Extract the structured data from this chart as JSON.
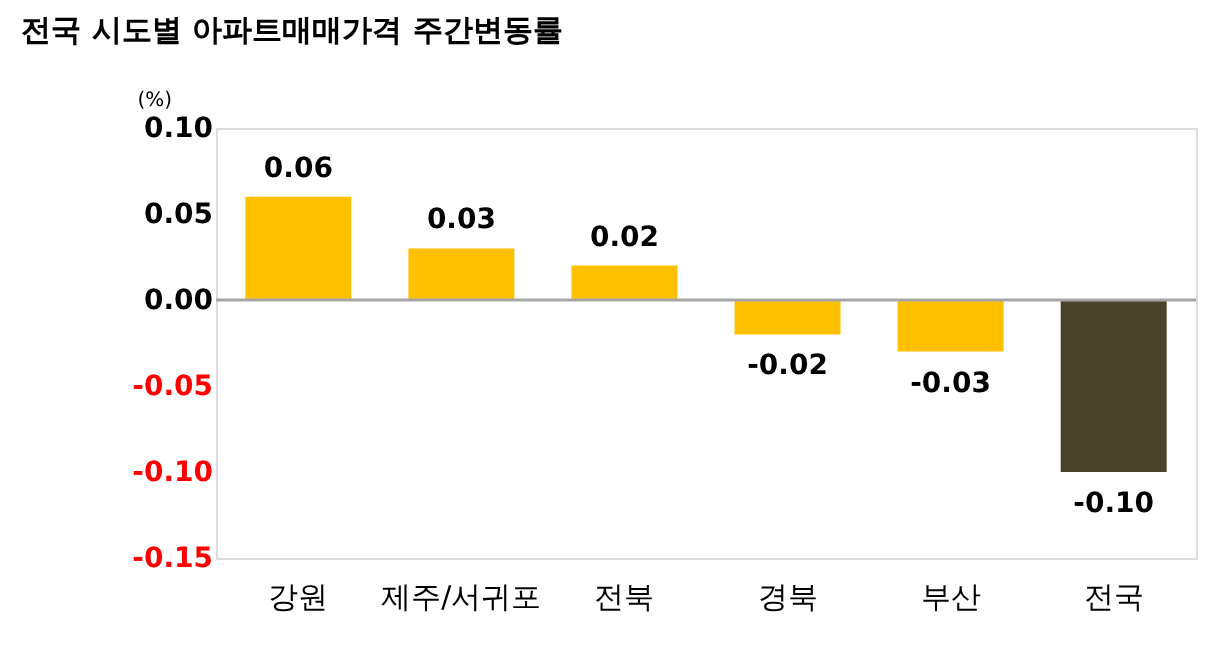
{
  "chart_data": {
    "type": "bar",
    "title": "전국 시도별 아파트매매가격 주간변동률",
    "ylabel": "(%)",
    "categories": [
      "강원",
      "제주/서귀포",
      "전북",
      "경북",
      "부산",
      "전국"
    ],
    "values": [
      0.06,
      0.03,
      0.02,
      -0.02,
      -0.03,
      -0.1
    ],
    "value_labels": [
      "0.06",
      "0.03",
      "0.02",
      "-0.02",
      "-0.03",
      "-0.10"
    ],
    "colors": [
      "#ffc000",
      "#ffc000",
      "#ffc000",
      "#ffc000",
      "#ffc000",
      "#4a4229"
    ],
    "ylim": [
      -0.15,
      0.1
    ],
    "yticks": [
      {
        "value": -0.15,
        "label": "-0.15"
      },
      {
        "value": -0.1,
        "label": "-0.10"
      },
      {
        "value": -0.05,
        "label": "-0.05"
      },
      {
        "value": 0,
        "label": "0.00"
      },
      {
        "value": 0.05,
        "label": "0.05"
      },
      {
        "value": 0.1,
        "label": "0.10"
      }
    ],
    "ref_lines": [
      {
        "axis": "y",
        "value": 0,
        "color": "#a6a6a6"
      }
    ],
    "grid": false
  }
}
